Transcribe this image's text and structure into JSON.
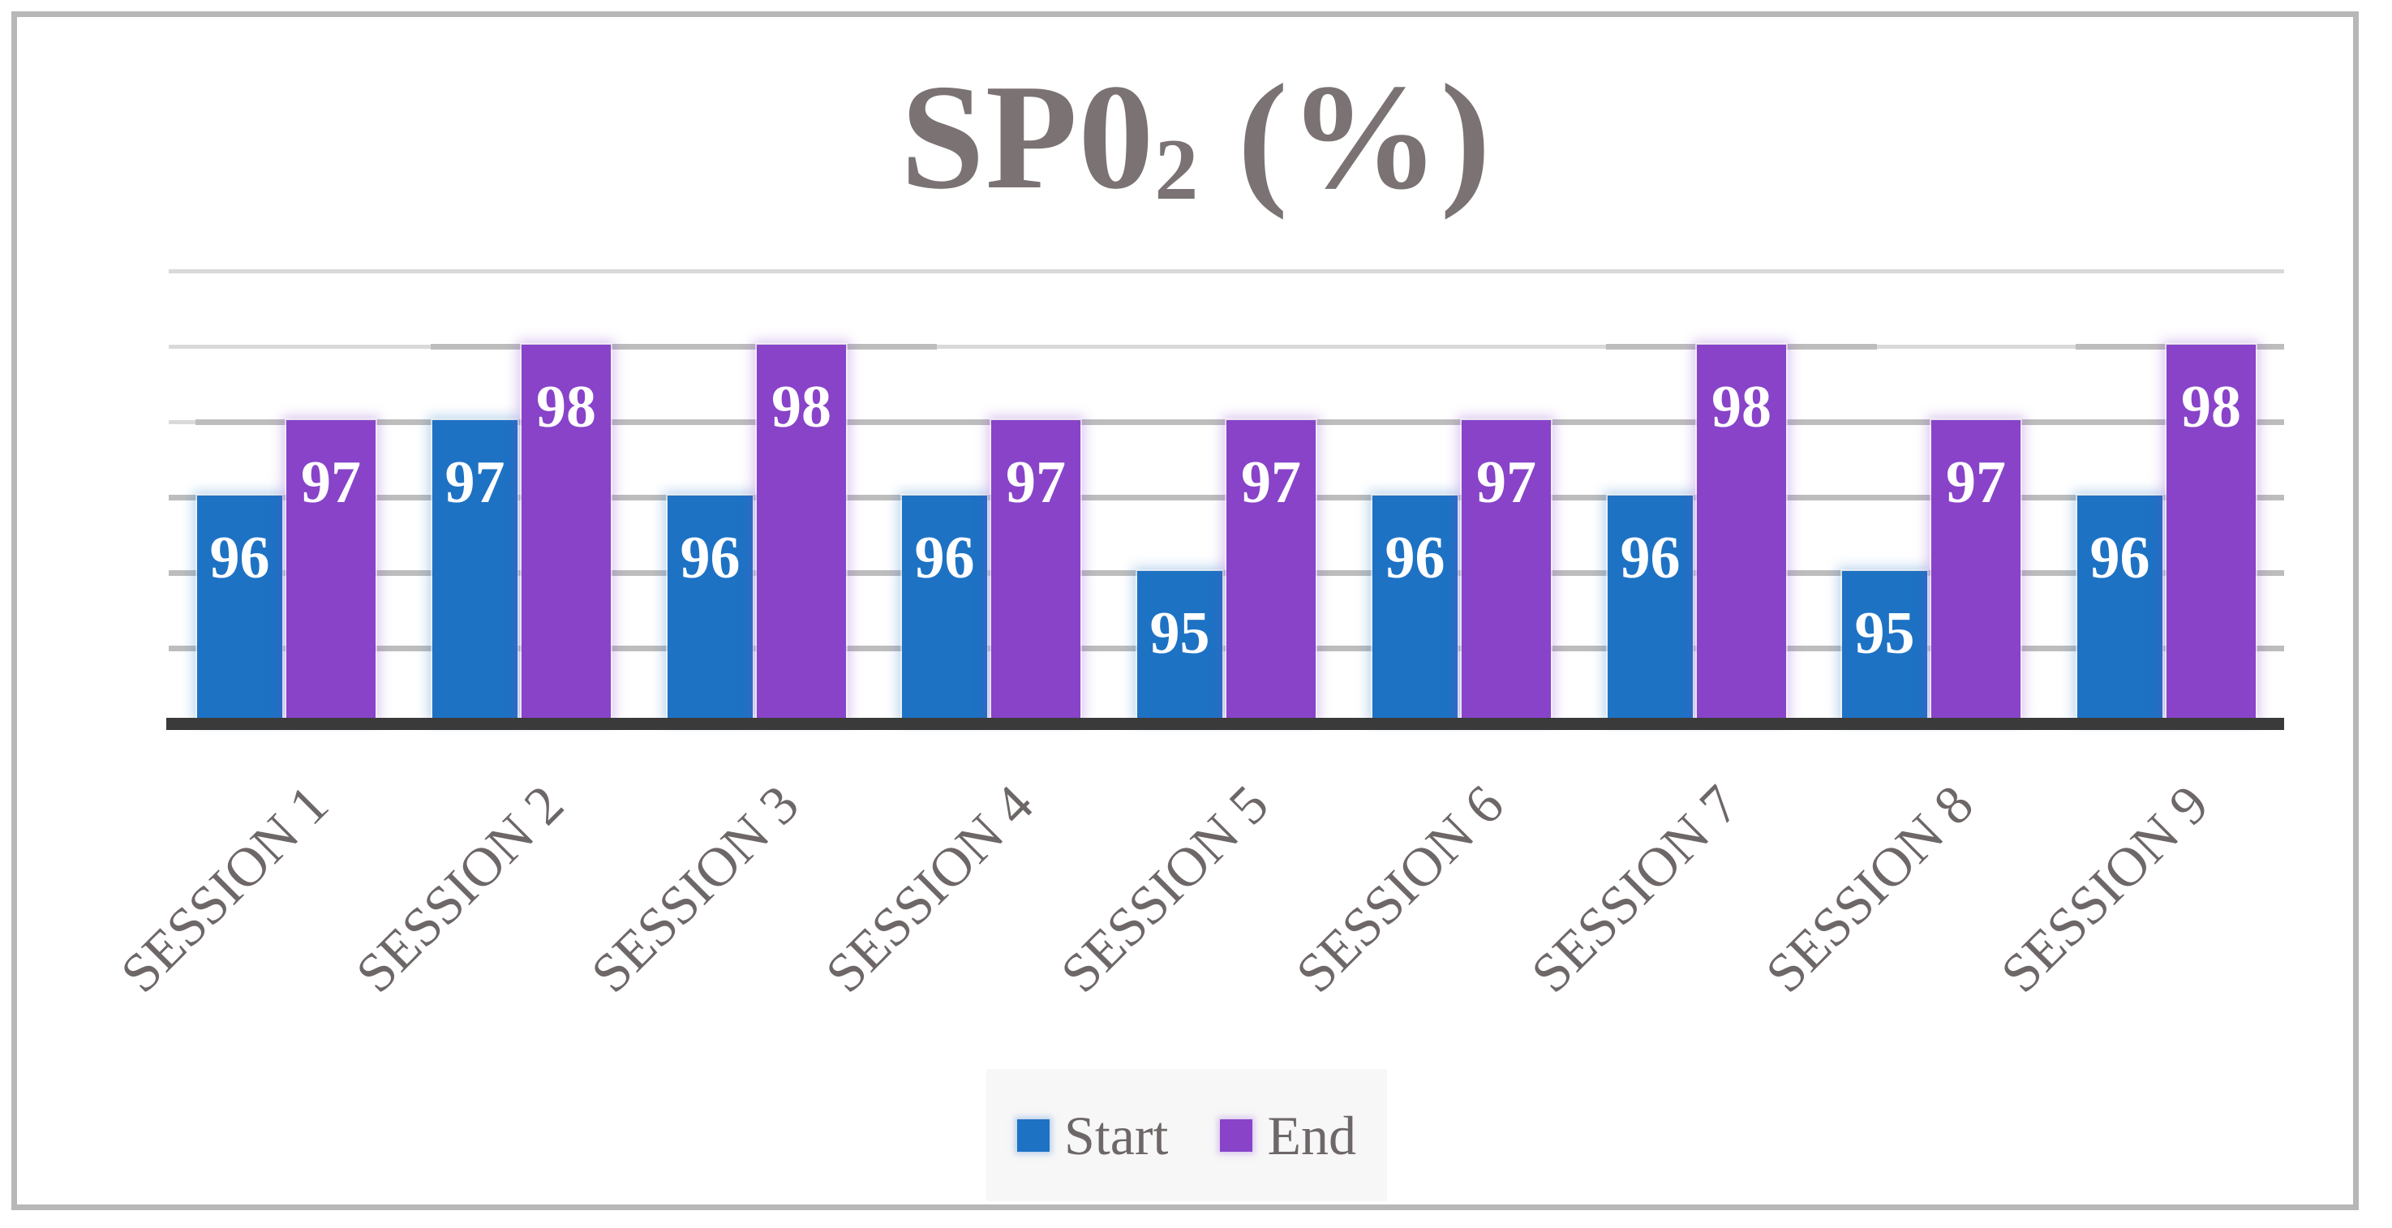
{
  "title": {
    "main": "SP0",
    "subscript": "2",
    "suffix": " (%)"
  },
  "chart_data": {
    "type": "bar",
    "title": "SP02 (%)",
    "categories": [
      "SESSION 1",
      "SESSION 2",
      "SESSION 3",
      "SESSION 4",
      "SESSION 5",
      "SESSION 6",
      "SESSION 7",
      "SESSION 8",
      "SESSION 9"
    ],
    "series": [
      {
        "name": "Start",
        "values": [
          96,
          97,
          96,
          96,
          95,
          96,
          96,
          95,
          96
        ]
      },
      {
        "name": "End",
        "values": [
          97,
          98,
          98,
          97,
          97,
          97,
          98,
          97,
          98
        ]
      }
    ],
    "xlabel": "",
    "ylabel": "",
    "ylim": [
      93,
      99
    ],
    "gridline_values": [
      94,
      95,
      96,
      97,
      98,
      99
    ],
    "y_axis_labels_shown": false,
    "data_labels_shown": true,
    "legend_position": "bottom-center",
    "grid": "horizontal"
  },
  "legend": {
    "items": [
      {
        "label": "Start",
        "series": "Start"
      },
      {
        "label": "End",
        "series": "End"
      }
    ]
  },
  "colors": {
    "start_bar": "#1E72C4",
    "end_bar": "#8843C9",
    "grid_line": "#D9D9D9",
    "grid_line_dark": "#BDBDBD",
    "axis_line": "#3A3A3A",
    "title_text": "#7B7373",
    "axis_label_text": "#6E6767",
    "data_label_text": "#FFFFFF",
    "legend_bg": "#F7F7F7",
    "frame_border": "#B7B7B7"
  }
}
